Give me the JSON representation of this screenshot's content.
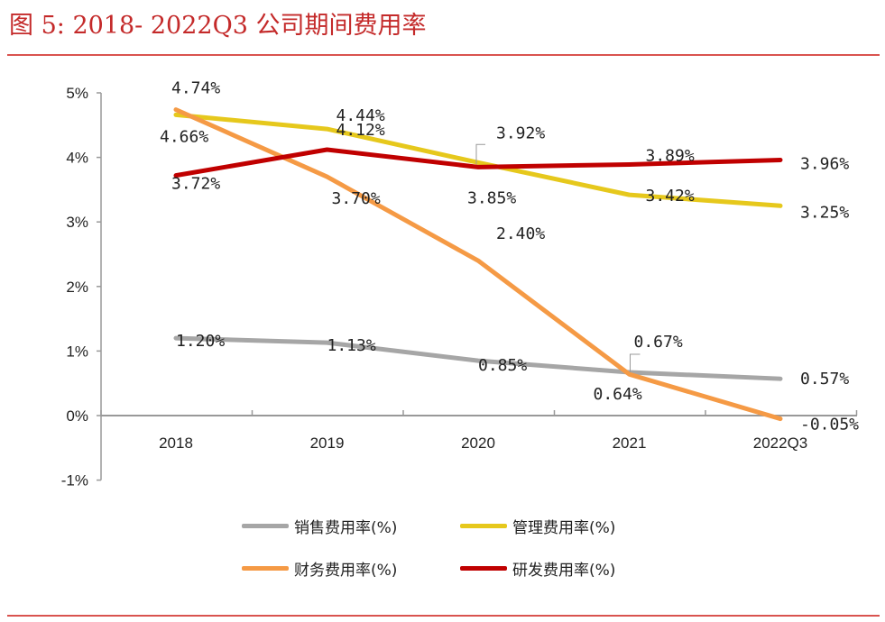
{
  "title": "图 5:  2018- 2022Q3 公司期间费用率",
  "chart_data": {
    "type": "line",
    "title": "图 5:  2018- 2022Q3 公司期间费用率",
    "categories": [
      "2018",
      "2019",
      "2020",
      "2021",
      "2022Q3"
    ],
    "ylim": [
      -1,
      5
    ],
    "yticks": [
      -1,
      0,
      1,
      2,
      3,
      4,
      5
    ],
    "ytick_labels": [
      "-1%",
      "0%",
      "1%",
      "2%",
      "3%",
      "4%",
      "5%"
    ],
    "grid": false,
    "legend_placement": "bottom",
    "series": [
      {
        "name": "销售费用率(%)",
        "color": "#a6a6a6",
        "values": [
          1.2,
          1.13,
          0.85,
          0.67,
          0.57
        ],
        "labels": [
          "1.20%",
          "1.13%",
          "0.85%",
          "0.67%",
          "0.57%"
        ]
      },
      {
        "name": "管理费用率(%)",
        "color": "#e6c81c",
        "values": [
          4.66,
          4.44,
          3.92,
          3.42,
          3.25
        ],
        "labels": [
          "4.66%",
          "4.44%",
          "3.92%",
          "3.42%",
          "3.25%"
        ]
      },
      {
        "name": "财务费用率(%)",
        "color": "#f59a45",
        "values": [
          4.74,
          3.7,
          2.4,
          0.64,
          -0.05
        ],
        "labels": [
          "4.74%",
          "3.70%",
          "2.40%",
          "0.64%",
          "-0.05%"
        ]
      },
      {
        "name": "研发费用率(%)",
        "color": "#c00000",
        "values": [
          3.72,
          4.12,
          3.85,
          3.89,
          3.96
        ],
        "labels": [
          "3.72%",
          "4.12%",
          "3.85%",
          "3.89%",
          "3.96%"
        ]
      }
    ]
  }
}
